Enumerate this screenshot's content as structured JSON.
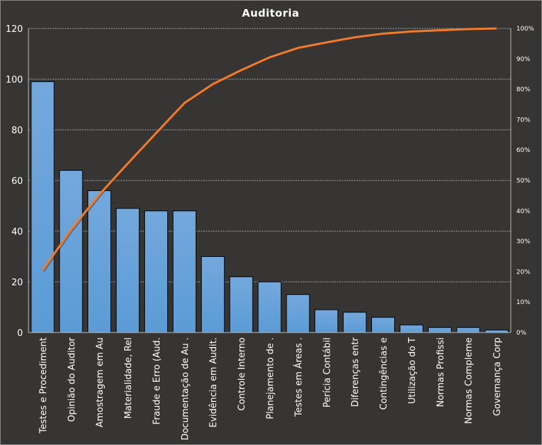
{
  "chart_data": {
    "type": "bar",
    "title": "Auditoria",
    "categories": [
      "Testes e Procediment",
      "Opinião do Auditor",
      "Amostragem em Au",
      "Materialidade, Rel",
      "Fraude  e Erro (Aud.",
      "Documentação de Au .",
      "Evidência em Audit.",
      "Controle Interno",
      "Planejamento de .",
      "Testes em Áreas  .",
      "Perícia Contábil",
      "Diferenças entr",
      "Contingências e",
      "Utilização do T",
      "Normas Profissi",
      "Normas Compleme",
      "Governança Corp"
    ],
    "series": [
      {
        "type": "bar",
        "axis": "left",
        "values": [
          99,
          64,
          56,
          49,
          48,
          48,
          30,
          22,
          20,
          15,
          9,
          8,
          6,
          3,
          2,
          2,
          1
        ]
      },
      {
        "type": "line",
        "axis": "right",
        "values": [
          20.5,
          33.8,
          45.4,
          55.6,
          65.6,
          75.5,
          81.7,
          86.3,
          90.5,
          93.6,
          95.4,
          97.1,
          98.3,
          99.0,
          99.4,
          99.8,
          100
        ]
      }
    ],
    "ylim": [
      0,
      120
    ],
    "yticks": [
      "0",
      "20",
      "40",
      "60",
      "80",
      "100",
      "120"
    ],
    "y2lim": [
      0,
      100
    ],
    "y2ticks": [
      "0%",
      "10%",
      "20%",
      "30%",
      "40%",
      "50%",
      "60%",
      "70%",
      "80%",
      "90%",
      "100%"
    ],
    "grid": true,
    "colors": {
      "bar": "#5b9bd5",
      "bar_top": "#74a8dd",
      "line": "#ed7d31",
      "background": "#373534",
      "text": "#ffffff"
    }
  }
}
